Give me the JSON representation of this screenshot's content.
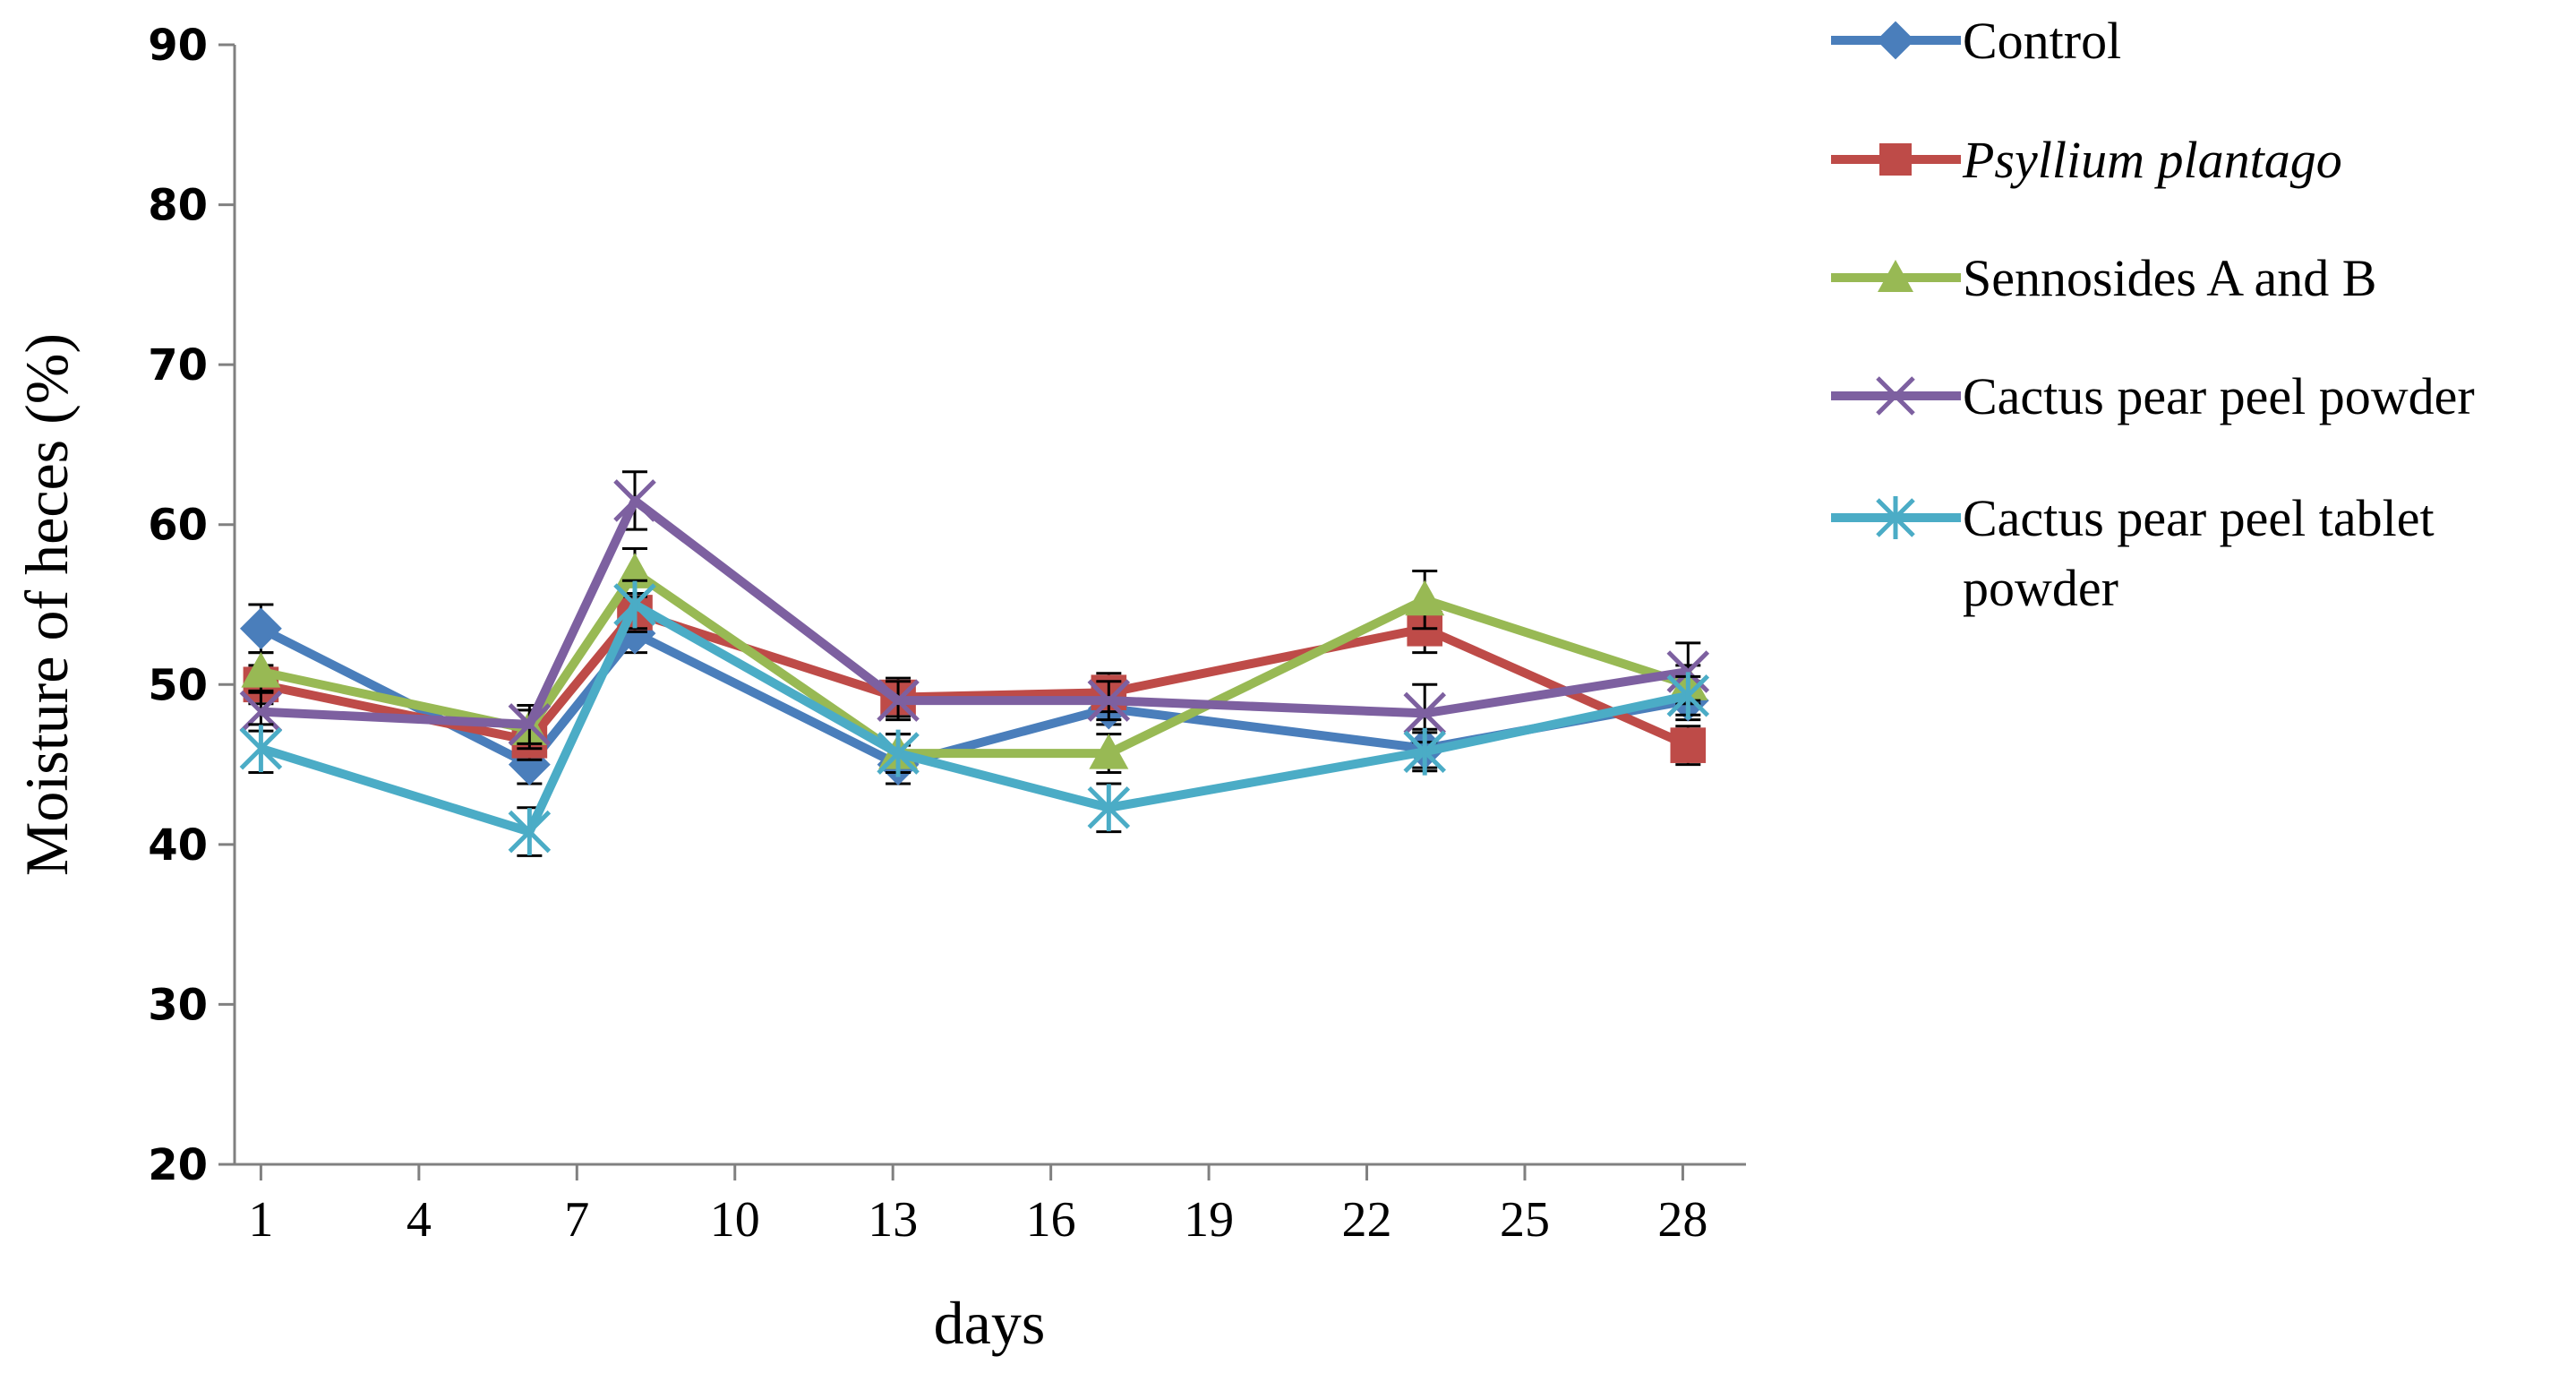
{
  "chart_data": {
    "type": "line",
    "title": "",
    "xlabel": "days",
    "ylabel": "Moisture of heces (%)",
    "ylim": [
      20,
      90
    ],
    "yticks": [
      "20",
      "30",
      "40",
      "50",
      "60",
      "70",
      "80",
      "90"
    ],
    "xlim": [
      0.5,
      29.2
    ],
    "xticks": [
      "1",
      "4",
      "7",
      "10",
      "13",
      "16",
      "19",
      "22",
      "25",
      "28"
    ],
    "legend_position": "top-right",
    "series": [
      {
        "name": "Control",
        "color": "#4a7ebb",
        "marker": "diamond",
        "italic": false,
        "x": [
          1,
          6.1,
          8.1,
          13.1,
          17.1,
          23.1,
          28.1
        ],
        "values": [
          53.5,
          45.0,
          53.2,
          45.0,
          48.5,
          46.0,
          49.0
        ],
        "errors": [
          1.5,
          1.2,
          1.2,
          1.2,
          1.0,
          1.2,
          1.2
        ]
      },
      {
        "name": "Psyllium plantago",
        "color": "#be4b48",
        "marker": "square",
        "italic": true,
        "x": [
          1,
          6.1,
          8.1,
          13.1,
          17.1,
          23.1,
          28.1
        ],
        "values": [
          50.0,
          46.5,
          54.5,
          49.2,
          49.5,
          53.5,
          46.2
        ],
        "errors": [
          1.2,
          1.2,
          1.2,
          1.2,
          1.2,
          1.5,
          1.2
        ]
      },
      {
        "name": "Sennosides A and B",
        "color": "#98b954",
        "marker": "triangle",
        "italic": false,
        "x": [
          1,
          6.1,
          8.1,
          13.1,
          17.1,
          23.1,
          28.1
        ],
        "values": [
          50.8,
          47.2,
          57.0,
          45.7,
          45.7,
          55.3,
          50.0
        ],
        "errors": [
          1.2,
          1.2,
          1.5,
          1.2,
          1.2,
          1.8,
          1.2
        ]
      },
      {
        "name": "Cactus pear peel powder",
        "color": "#7d60a0",
        "marker": "x",
        "italic": false,
        "x": [
          1,
          6.1,
          8.1,
          13.1,
          17.1,
          23.1,
          28.1
        ],
        "values": [
          48.3,
          47.5,
          61.5,
          49.0,
          49.0,
          48.2,
          50.8
        ],
        "errors": [
          1.2,
          1.2,
          1.8,
          1.2,
          1.2,
          1.8,
          1.8
        ]
      },
      {
        "name": "Cactus pear peel tablet powder",
        "legend_lines": [
          "Cactus pear peel tablet",
          "powder"
        ],
        "color": "#4bacc6",
        "marker": "asterisk",
        "italic": false,
        "x": [
          1,
          6.1,
          8.1,
          13.1,
          17.1,
          23.1,
          28.1
        ],
        "values": [
          46.0,
          40.8,
          55.0,
          45.7,
          42.3,
          45.8,
          49.3
        ],
        "errors": [
          1.5,
          1.5,
          1.5,
          1.2,
          1.5,
          1.2,
          1.2
        ]
      }
    ]
  }
}
